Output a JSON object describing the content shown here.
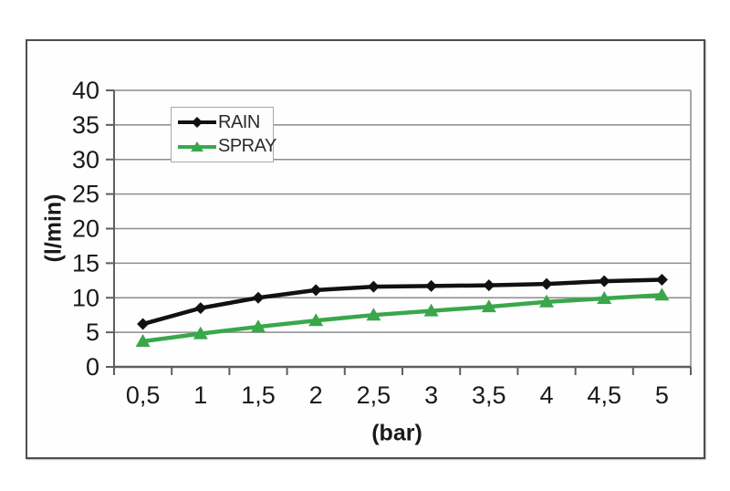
{
  "chart_data": {
    "type": "line",
    "title": "",
    "xlabel": "(bar)",
    "ylabel": "(l/min)",
    "categories": [
      "0,5",
      "1",
      "1,5",
      "2",
      "2,5",
      "3",
      "3,5",
      "4",
      "4,5",
      "5"
    ],
    "x_values": [
      0.5,
      1,
      1.5,
      2,
      2.5,
      3,
      3.5,
      4,
      4.5,
      5
    ],
    "series": [
      {
        "name": "RAIN",
        "marker": "diamond",
        "color": "#111111",
        "values": [
          6.2,
          8.5,
          10.0,
          11.1,
          11.6,
          11.7,
          11.8,
          12.0,
          12.4,
          12.6
        ]
      },
      {
        "name": "SPRAY",
        "marker": "triangle",
        "color": "#3aa74b",
        "values": [
          3.7,
          4.8,
          5.8,
          6.7,
          7.5,
          8.1,
          8.7,
          9.4,
          9.9,
          10.4
        ]
      }
    ],
    "ylim": [
      0,
      40
    ],
    "ytick_step": 5,
    "yticks": [
      "0",
      "5",
      "10",
      "15",
      "20",
      "25",
      "30",
      "35",
      "40"
    ],
    "grid": "horizontal",
    "legend_position": "top-left-inside"
  },
  "colors": {
    "grid": "#8c8c8c",
    "axis": "#5f5f5f",
    "frame": "#4d4d4d",
    "text": "#1a1a1a",
    "legend_border": "#a8a8a8",
    "legend_bg": "#fdfdfd",
    "background": "#ffffff"
  }
}
